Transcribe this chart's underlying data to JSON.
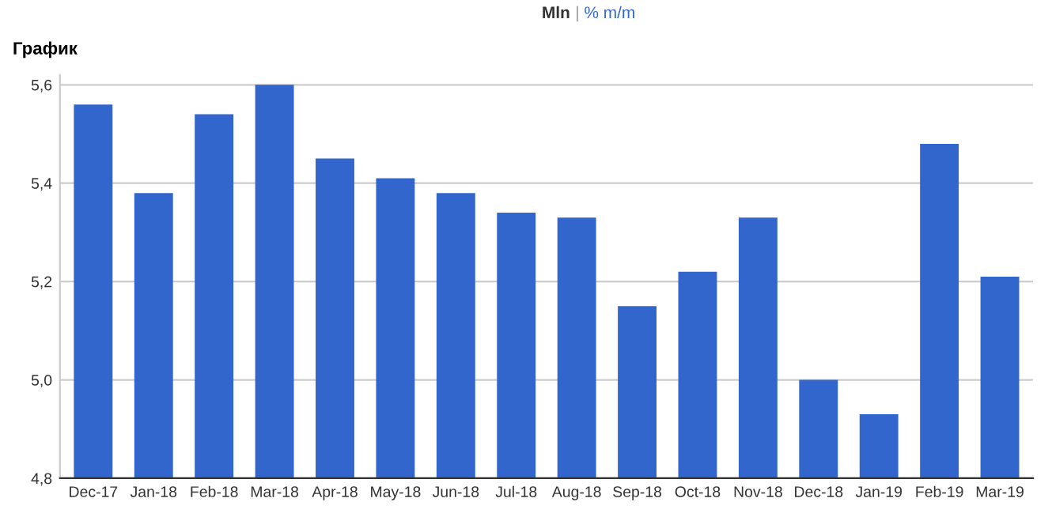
{
  "chart_data": {
    "type": "bar",
    "title": "График",
    "annotations": [
      "Mln",
      "|",
      "% m/m"
    ],
    "categories": [
      "Dec-17",
      "Jan-18",
      "Feb-18",
      "Mar-18",
      "Apr-18",
      "May-18",
      "Jun-18",
      "Jul-18",
      "Aug-18",
      "Sep-18",
      "Oct-18",
      "Nov-18",
      "Dec-18",
      "Jan-19",
      "Feb-19",
      "Mar-19"
    ],
    "values": [
      5.56,
      5.38,
      5.54,
      5.6,
      5.45,
      5.41,
      5.38,
      5.34,
      5.33,
      5.15,
      5.22,
      5.33,
      5.0,
      4.93,
      5.48,
      5.21
    ],
    "color": "#3366cc",
    "ylim": [
      4.8,
      5.62
    ],
    "yticks": [
      {
        "value": 4.8,
        "label": "4,8"
      },
      {
        "value": 5.0,
        "label": "5,0"
      },
      {
        "value": 5.2,
        "label": "5,2"
      },
      {
        "value": 5.4,
        "label": "5,4"
      },
      {
        "value": 5.6,
        "label": "5,6"
      }
    ],
    "grid": "y",
    "legend": false
  }
}
